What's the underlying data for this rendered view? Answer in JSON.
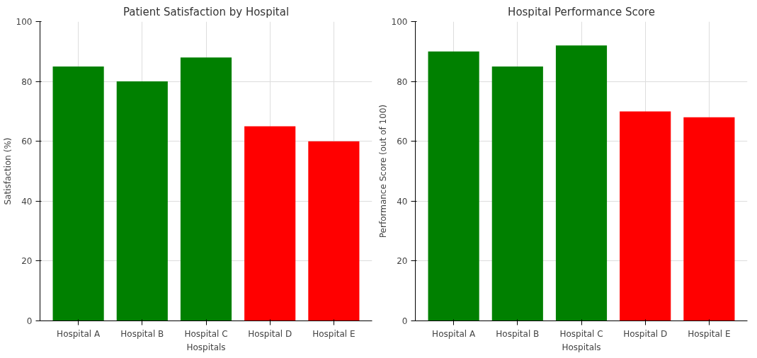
{
  "chart_data": [
    {
      "type": "bar",
      "title": "Patient Satisfaction by Hospital",
      "xlabel": "Hospitals",
      "ylabel": "Satisfaction (%)",
      "categories": [
        "Hospital A",
        "Hospital B",
        "Hospital C",
        "Hospital D",
        "Hospital E"
      ],
      "values": [
        85,
        80,
        88,
        65,
        60
      ],
      "colors": [
        "#008000",
        "#008000",
        "#008000",
        "#ff0000",
        "#ff0000"
      ],
      "ylim": [
        0,
        100
      ],
      "yticks": [
        0,
        20,
        40,
        60,
        80,
        100
      ],
      "grid": true
    },
    {
      "type": "bar",
      "title": "Hospital Performance Score",
      "xlabel": "Hospitals",
      "ylabel": "Performance Score (out of 100)",
      "categories": [
        "Hospital A",
        "Hospital B",
        "Hospital C",
        "Hospital D",
        "Hospital E"
      ],
      "values": [
        90,
        85,
        92,
        70,
        68
      ],
      "colors": [
        "#008000",
        "#008000",
        "#008000",
        "#ff0000",
        "#ff0000"
      ],
      "ylim": [
        0,
        100
      ],
      "yticks": [
        0,
        20,
        40,
        60,
        80,
        100
      ],
      "grid": true
    }
  ]
}
